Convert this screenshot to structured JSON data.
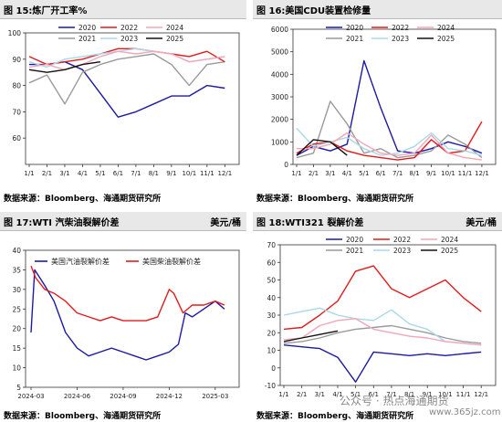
{
  "source_label": "数据来源：Bloomberg、海通期货研究所",
  "watermark": "公众号 · 热点海通期货",
  "watermark_site": "www.365jz.com",
  "panels": [
    {
      "title": "图 15:炼厂开工率%",
      "unit": ""
    },
    {
      "title": "图 16:美国CDU装置检修量",
      "unit": ""
    },
    {
      "title": "图 17:WTI 汽柴油裂解价差",
      "unit": "美元/桶"
    },
    {
      "title": "图 18:WTI321 裂解价差",
      "unit": "美元/桶"
    }
  ],
  "colors": {
    "2020": "#1a1aa6",
    "2021": "#9a9a9a",
    "2022": "#e31a1c",
    "2023": "#a8d8ea",
    "2024": "#f4a6b6",
    "2025": "#111111",
    "gasoline": "#1a1aa6",
    "diesel": "#e31a1c"
  },
  "chart_data": [
    {
      "type": "line",
      "x": [
        "1/1",
        "2/1",
        "3/1",
        "4/1",
        "5/1",
        "6/1",
        "7/1",
        "8/1",
        "9/1",
        "10/1",
        "11/1",
        "12/1"
      ],
      "ylim": [
        50,
        100
      ],
      "yticks": [
        60,
        70,
        80,
        90,
        100
      ],
      "series": [
        {
          "name": "2020",
          "values": [
            88,
            88,
            89,
            86,
            77,
            68,
            70,
            73,
            76,
            76,
            80,
            79
          ]
        },
        {
          "name": "2021",
          "values": [
            81,
            84,
            73,
            85,
            88,
            90,
            91,
            92,
            88,
            80,
            88,
            89
          ]
        },
        {
          "name": "2022",
          "values": [
            91,
            88,
            89,
            90,
            92,
            94,
            94,
            93,
            92,
            91,
            93,
            89
          ]
        },
        {
          "name": "2023",
          "values": [
            89,
            87,
            90,
            91,
            92,
            93,
            94,
            93,
            92,
            89,
            90,
            91
          ]
        },
        {
          "name": "2024",
          "values": [
            87,
            88,
            86,
            88,
            91,
            93,
            92,
            93,
            92,
            89,
            90,
            91
          ]
        },
        {
          "name": "2025",
          "values": [
            86,
            85,
            86,
            88,
            89,
            null,
            null,
            null,
            null,
            null,
            null,
            null
          ]
        }
      ]
    },
    {
      "type": "line",
      "x": [
        "1/1",
        "2/1",
        "3/1",
        "4/1",
        "5/1",
        "6/1",
        "7/1",
        "8/1",
        "9/1",
        "10/1",
        "11/1",
        "12/1"
      ],
      "ylim": [
        0,
        6000
      ],
      "yticks": [
        0,
        1000,
        2000,
        3000,
        4000,
        5000,
        6000
      ],
      "series": [
        {
          "name": "2020",
          "values": [
            400,
            800,
            600,
            900,
            4600,
            2500,
            600,
            500,
            700,
            1000,
            800,
            500
          ]
        },
        {
          "name": "2021",
          "values": [
            300,
            500,
            2800,
            1800,
            500,
            700,
            300,
            400,
            600,
            1300,
            900,
            300
          ]
        },
        {
          "name": "2022",
          "values": [
            500,
            900,
            1000,
            600,
            400,
            300,
            200,
            300,
            1100,
            500,
            600,
            1900
          ]
        },
        {
          "name": "2023",
          "values": [
            1600,
            800,
            1000,
            1200,
            700,
            400,
            500,
            800,
            1400,
            700,
            600,
            400
          ]
        },
        {
          "name": "2024",
          "values": [
            700,
            700,
            900,
            1400,
            900,
            500,
            400,
            500,
            1300,
            500,
            300,
            200
          ]
        },
        {
          "name": "2025",
          "values": [
            400,
            1100,
            1000,
            400,
            null,
            null,
            null,
            null,
            null,
            null,
            null,
            null
          ]
        }
      ]
    },
    {
      "type": "line",
      "x": [
        "2024-03",
        "2024-06",
        "2024-09",
        "2024-12",
        "2025-03"
      ],
      "ylim": [
        5,
        40
      ],
      "yticks": [
        5,
        10,
        15,
        20,
        25,
        30,
        35,
        40
      ],
      "series": [
        {
          "name": "美国汽油裂解价差",
          "values": [
            [
              0,
              19
            ],
            [
              0.08,
              35
            ],
            [
              0.3,
              31
            ],
            [
              0.5,
              27
            ],
            [
              0.75,
              19
            ],
            [
              1,
              15
            ],
            [
              1.25,
              13
            ],
            [
              1.5,
              14
            ],
            [
              1.75,
              15
            ],
            [
              2,
              14
            ],
            [
              2.25,
              13
            ],
            [
              2.5,
              12
            ],
            [
              2.75,
              13
            ],
            [
              3,
              14
            ],
            [
              3.2,
              16
            ],
            [
              3.35,
              24
            ],
            [
              3.5,
              23
            ],
            [
              3.75,
              25
            ],
            [
              4,
              27
            ],
            [
              4.2,
              25
            ]
          ]
        },
        {
          "name": "美国柴油裂解价差",
          "values": [
            [
              0,
              36
            ],
            [
              0.1,
              33
            ],
            [
              0.3,
              30
            ],
            [
              0.5,
              29
            ],
            [
              0.75,
              27
            ],
            [
              1,
              24
            ],
            [
              1.25,
              23
            ],
            [
              1.5,
              22
            ],
            [
              1.75,
              23
            ],
            [
              2,
              22
            ],
            [
              2.25,
              22
            ],
            [
              2.5,
              22
            ],
            [
              2.75,
              23
            ],
            [
              3,
              30
            ],
            [
              3.1,
              29
            ],
            [
              3.3,
              24
            ],
            [
              3.5,
              26
            ],
            [
              3.75,
              26
            ],
            [
              4,
              27
            ],
            [
              4.2,
              26
            ]
          ]
        }
      ]
    },
    {
      "type": "line",
      "x": [
        "1/1",
        "2/1",
        "3/1",
        "4/1",
        "5/1",
        "6/1",
        "7/1",
        "8/1",
        "9/1",
        "10/1",
        "11/1",
        "12/1"
      ],
      "ylim": [
        -10,
        70
      ],
      "yticks": [
        -10,
        0,
        10,
        20,
        30,
        40,
        50,
        60,
        70
      ],
      "series": [
        {
          "name": "2020",
          "values": [
            13,
            12,
            11,
            6,
            -8,
            9,
            8,
            7,
            8,
            7,
            8,
            9
          ]
        },
        {
          "name": "2021",
          "values": [
            14,
            15,
            17,
            20,
            22,
            23,
            24,
            22,
            20,
            17,
            15,
            14
          ]
        },
        {
          "name": "2022",
          "values": [
            22,
            23,
            30,
            38,
            55,
            58,
            45,
            40,
            45,
            50,
            40,
            32
          ]
        },
        {
          "name": "2023",
          "values": [
            30,
            32,
            34,
            30,
            28,
            27,
            33,
            25,
            22,
            15,
            14,
            13
          ]
        },
        {
          "name": "2024",
          "values": [
            16,
            17,
            24,
            27,
            28,
            22,
            20,
            18,
            17,
            15,
            14,
            13
          ]
        },
        {
          "name": "2025",
          "values": [
            15,
            17,
            19,
            21,
            null,
            null,
            null,
            null,
            null,
            null,
            null,
            null
          ]
        }
      ]
    }
  ]
}
